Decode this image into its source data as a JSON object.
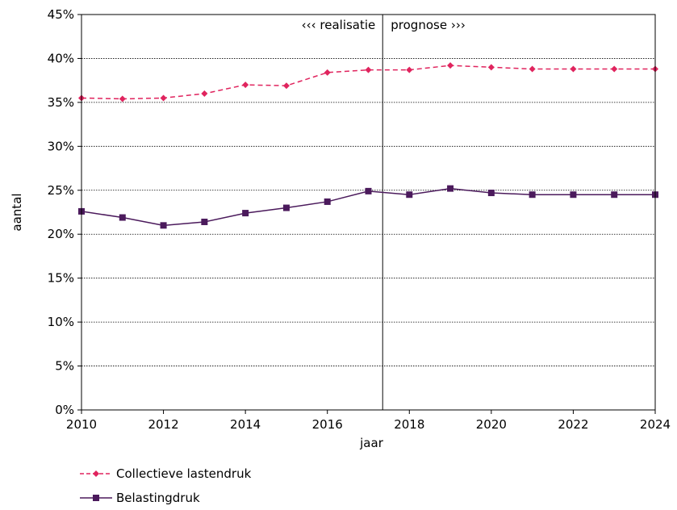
{
  "chart_data": {
    "type": "line",
    "x": [
      2010,
      2011,
      2012,
      2013,
      2014,
      2015,
      2016,
      2017,
      2018,
      2019,
      2020,
      2021,
      2022,
      2023,
      2024
    ],
    "series": [
      {
        "name": "Collectieve lastendruk",
        "values": [
          35.5,
          35.4,
          35.5,
          36.0,
          37.0,
          36.9,
          38.4,
          38.7,
          38.7,
          39.2,
          39.0,
          38.8,
          38.8,
          38.8,
          38.8
        ],
        "color": "#e0245e",
        "style": "dashed",
        "marker": "diamond"
      },
      {
        "name": "Belastingdruk",
        "values": [
          22.6,
          21.9,
          21.0,
          21.4,
          22.4,
          23.0,
          23.7,
          24.9,
          24.5,
          25.2,
          24.7,
          24.5,
          24.5,
          24.5,
          24.5
        ],
        "color": "#4b1a5c",
        "style": "solid",
        "marker": "square"
      }
    ],
    "xlabel": "jaar",
    "ylabel": "aantal",
    "xlim": [
      2010,
      2024
    ],
    "ylim": [
      0,
      45
    ],
    "x_ticks": [
      2010,
      2012,
      2014,
      2016,
      2018,
      2020,
      2022,
      2024
    ],
    "y_ticks": [
      "0%",
      "5%",
      "10%",
      "15%",
      "20%",
      "25%",
      "30%",
      "35%",
      "40%",
      "45%"
    ],
    "divider_x": 2017.35,
    "annotation_left": "‹‹‹ realisatie",
    "annotation_right": "prognose ›››",
    "grid": "horizontal-dotted",
    "legend_position": "bottom-left"
  }
}
